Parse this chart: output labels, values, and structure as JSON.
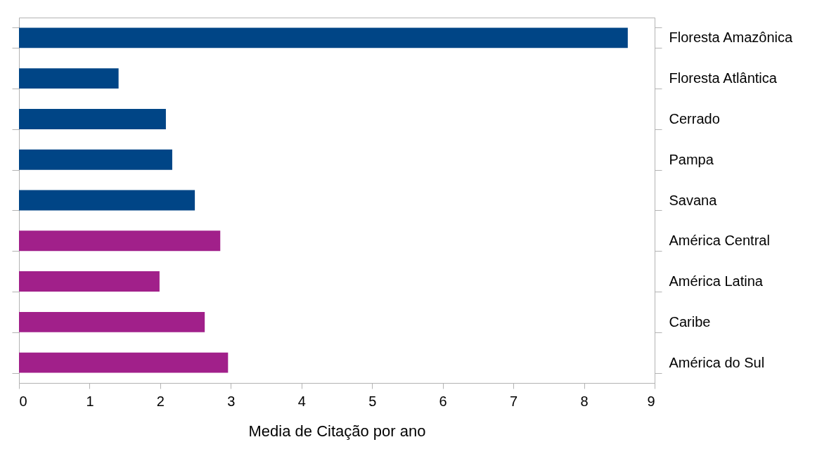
{
  "chart_data": {
    "type": "bar",
    "orientation": "horizontal",
    "xlabel": "Media de Citação por ano",
    "categories": [
      "Floresta Amazônica",
      "Floresta Atlântica",
      "Cerrado",
      "Pampa",
      "Savana",
      "América Central",
      "América Latina",
      "Caribe",
      "América do Sul"
    ],
    "values": [
      8.62,
      1.41,
      2.08,
      2.17,
      2.49,
      2.85,
      1.99,
      2.63,
      2.96
    ],
    "colors": [
      "#004586",
      "#004586",
      "#004586",
      "#004586",
      "#004586",
      "#a1208a",
      "#a1208a",
      "#a1208a",
      "#a1208a"
    ],
    "xlim": [
      0,
      9
    ],
    "xticks": [
      0,
      1,
      2,
      3,
      4,
      5,
      6,
      7,
      8,
      9
    ],
    "grid": false,
    "legend": false
  }
}
